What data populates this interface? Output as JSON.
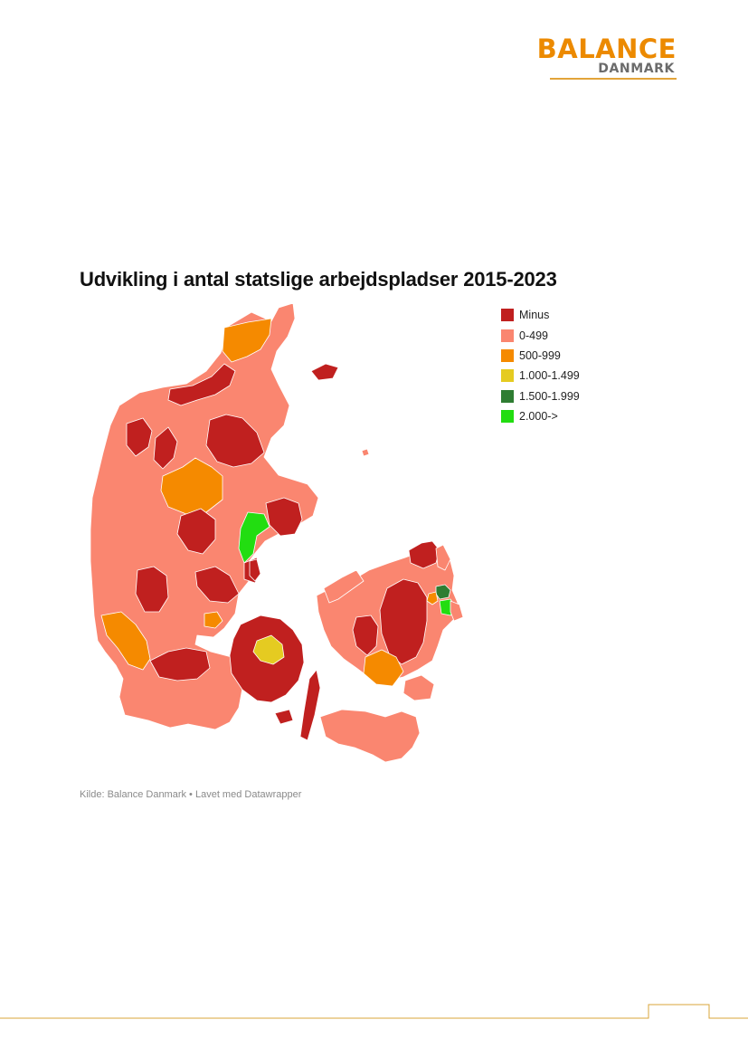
{
  "logo": {
    "top": "BALANCE",
    "bottom": "DANMARK",
    "colors": {
      "orange": "#ec8a00",
      "grey": "#6b6b6b",
      "rule": "#e2a43a"
    }
  },
  "title": "Udvikling i antal statslige arbejdspladser 2015-2023",
  "legend": [
    {
      "label": "Minus",
      "color": "#c0201f"
    },
    {
      "label": "0-499",
      "color": "#fa8670"
    },
    {
      "label": "500-999",
      "color": "#f58a00"
    },
    {
      "label": "1.000-1.499",
      "color": "#e5cb21"
    },
    {
      "label": "1.500-1.999",
      "color": "#2e7d32"
    },
    {
      "label": "2.000->",
      "color": "#22dd11"
    }
  ],
  "source": "Kilde: Balance Danmark • Lavet med Datawrapper",
  "map_colors": {
    "minus": "#c0201f",
    "low": "#fa8670",
    "mid": "#f58a00",
    "high": "#e5cb21",
    "higher": "#2e7d32",
    "top": "#22dd11",
    "border": "#ffffff"
  },
  "footer_line_color": "#d9a53a"
}
